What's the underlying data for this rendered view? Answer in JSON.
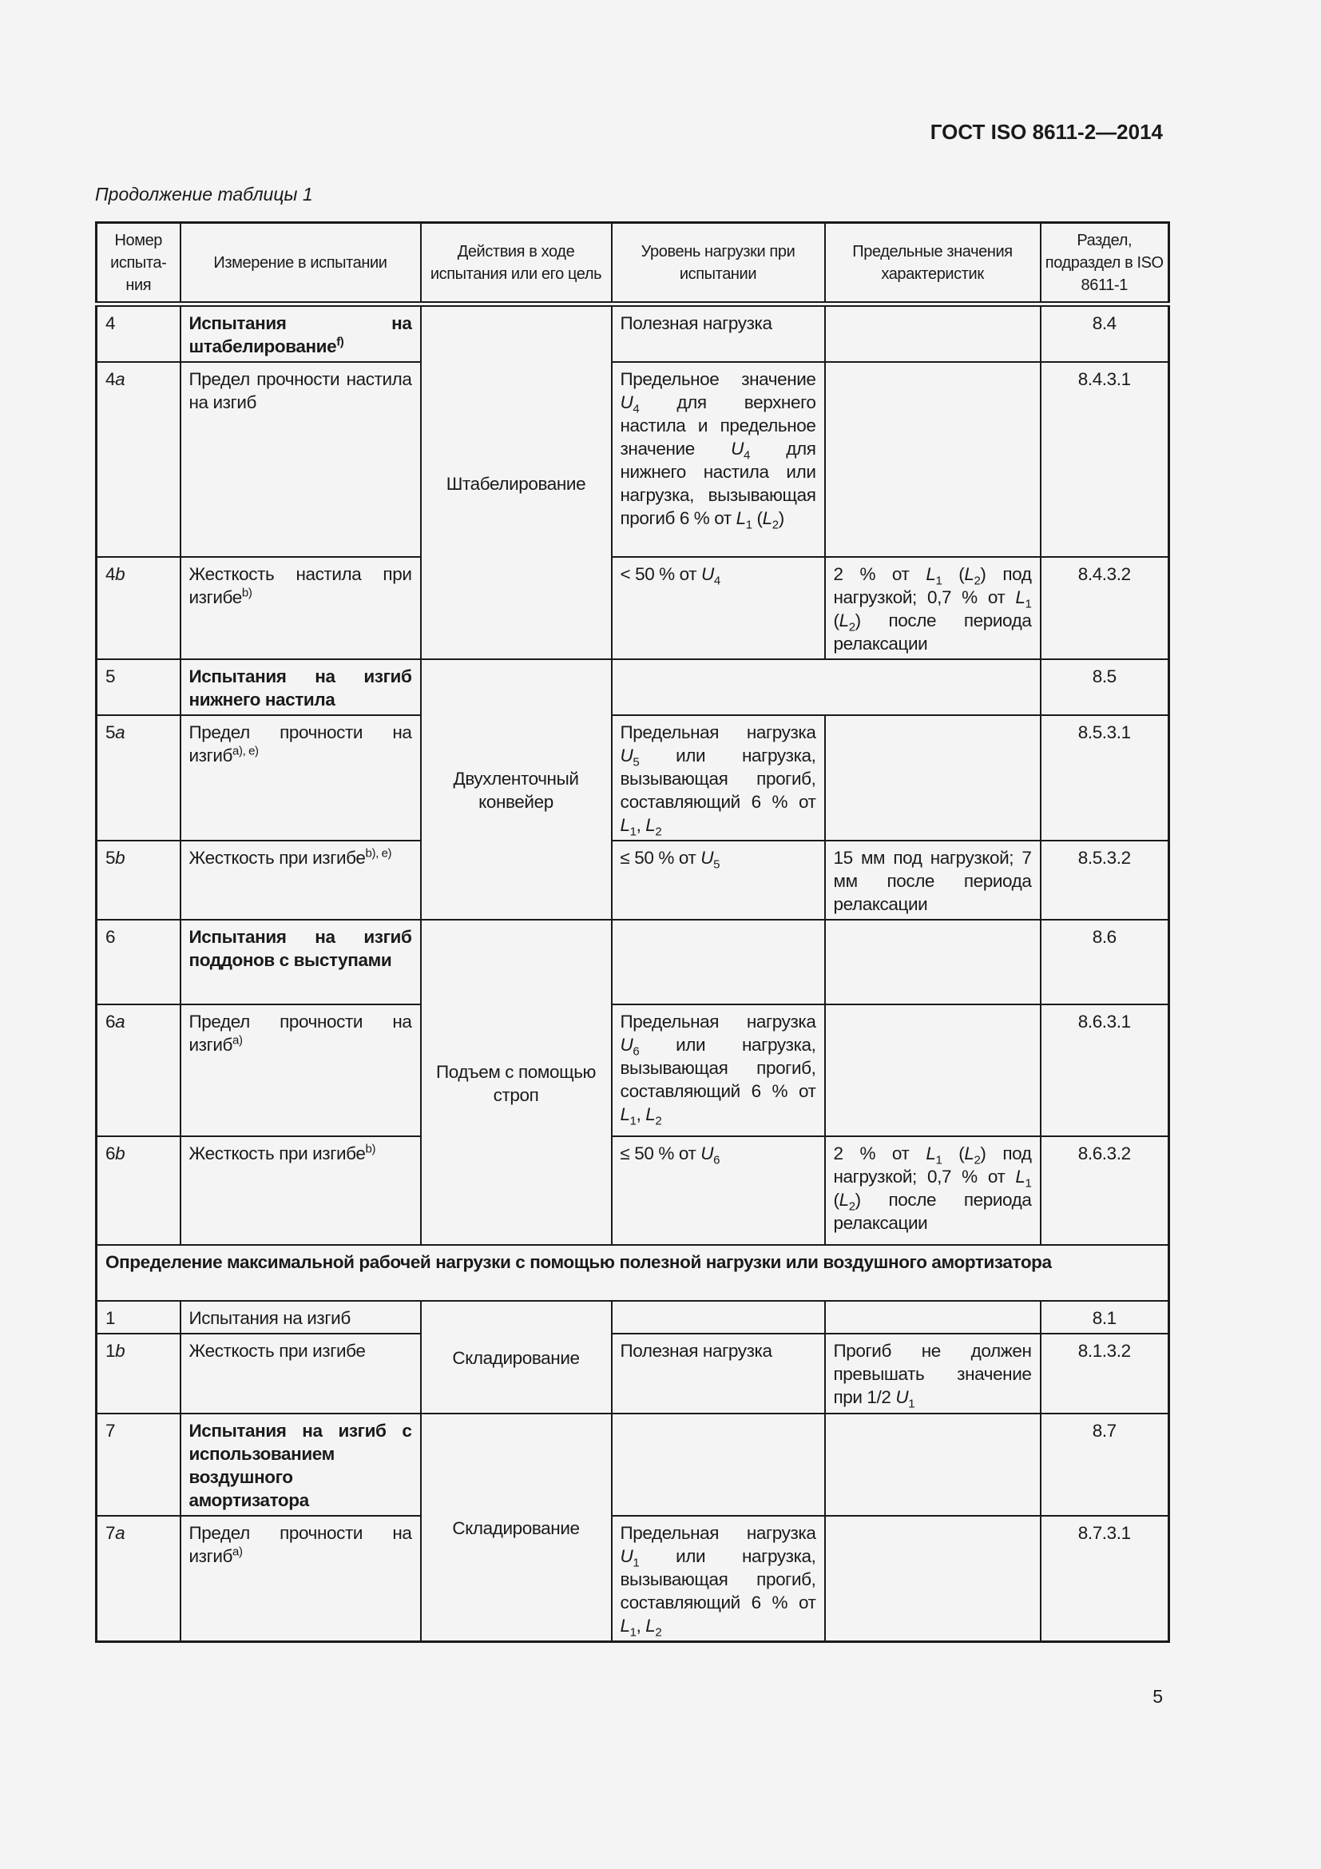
{
  "header": {
    "doc_code": "ГОСТ ISO 8611-2—2014",
    "caption": "Продолжение таблицы 1"
  },
  "footer": {
    "page_number": "5"
  },
  "table": {
    "columns": [
      "Номер испыта-ния",
      "Измерение в испытании",
      "Действия в ходе испытания или его цель",
      "Уровень нагрузки при испытании",
      "Предельные значения характеристик",
      "Раздел, подраздел в ISO 8611-1"
    ],
    "rows": [
      {
        "num": [
          [
            "4"
          ]
        ],
        "meas": [
          [
            "Испытания на штабелирование",
            "b"
          ],
          [
            "f)",
            "sup b"
          ]
        ],
        "act": {
          "text": "Штабелирование",
          "rowspan": 3
        },
        "load": [
          [
            "Полезная нагрузка"
          ]
        ],
        "limit": [],
        "sec": "8.4"
      },
      {
        "num": [
          [
            "4"
          ],
          [
            "a",
            "i"
          ]
        ],
        "meas": [
          [
            "Предел прочности настила на изгиб"
          ]
        ],
        "load": [
          [
            "Предельное значение "
          ],
          [
            "U",
            "i"
          ],
          [
            "4",
            "sub"
          ],
          [
            " для верхнего настила и предельное значение "
          ],
          [
            "U",
            "i"
          ],
          [
            "4",
            "sub"
          ],
          [
            " для нижнего настила или нагрузка, вызывающая прогиб 6 % от "
          ],
          [
            "L",
            "i"
          ],
          [
            "1",
            "sub"
          ],
          [
            " ("
          ],
          [
            "L",
            "i"
          ],
          [
            "2",
            "sub"
          ],
          [
            ")"
          ]
        ],
        "limit": [],
        "sec": "8.4.3.1"
      },
      {
        "num": [
          [
            "4"
          ],
          [
            "b",
            "i"
          ]
        ],
        "meas": [
          [
            "Жесткость настила при изгибе"
          ],
          [
            "b)",
            "sup"
          ]
        ],
        "load": [
          [
            "< 50 % от "
          ],
          [
            "U",
            "i"
          ],
          [
            "4",
            "sub"
          ]
        ],
        "limit": [
          [
            "2 % от "
          ],
          [
            "L",
            "i"
          ],
          [
            "1",
            "sub"
          ],
          [
            " ("
          ],
          [
            "L",
            "i"
          ],
          [
            "2",
            "sub"
          ],
          [
            ") под нагрузкой; 0,7 % от "
          ],
          [
            "L",
            "i"
          ],
          [
            "1",
            "sub"
          ],
          [
            " ("
          ],
          [
            "L",
            "i"
          ],
          [
            "2",
            "sub"
          ],
          [
            ") после периода релаксации"
          ]
        ],
        "sec": "8.4.3.2"
      },
      {
        "num": [
          [
            "5"
          ]
        ],
        "meas": [
          [
            "Испытания на изгиб нижнего настила",
            "b"
          ]
        ],
        "act": {
          "text": "Двухленточный конвейер",
          "rowspan": 3
        },
        "load": [],
        "merged": true,
        "sec": "8.5"
      },
      {
        "num": [
          [
            "5"
          ],
          [
            "a",
            "i"
          ]
        ],
        "meas": [
          [
            "Предел прочности на изгиб"
          ],
          [
            "a), e)",
            "sup"
          ]
        ],
        "load": [
          [
            "Предельная нагрузка "
          ],
          [
            "U",
            "i"
          ],
          [
            "5",
            "sub"
          ],
          [
            " или нагрузка, вызывающая прогиб, составляющий 6 % от "
          ],
          [
            "L",
            "i"
          ],
          [
            "1",
            "sub"
          ],
          [
            ", "
          ],
          [
            "L",
            "i"
          ],
          [
            "2",
            "sub"
          ]
        ],
        "limit": [],
        "sec": "8.5.3.1"
      },
      {
        "num": [
          [
            "5"
          ],
          [
            "b",
            "i"
          ]
        ],
        "meas": [
          [
            "Жесткость при изгибе"
          ],
          [
            "b), e)",
            "sup"
          ]
        ],
        "load": [
          [
            "≤ 50 % от "
          ],
          [
            "U",
            "i"
          ],
          [
            "5",
            "sub"
          ]
        ],
        "limit": [
          [
            "15 мм под нагрузкой; 7 мм после периода релаксации"
          ]
        ],
        "sec": "8.5.3.2"
      },
      {
        "num": [
          [
            "6"
          ]
        ],
        "meas": [
          [
            "Испытания на изгиб поддонов с выступами",
            "b"
          ]
        ],
        "act": {
          "text": "Подъем с помощью строп",
          "rowspan": 3
        },
        "load": [],
        "limit": [],
        "sec": "8.6"
      },
      {
        "num": [
          [
            "6"
          ],
          [
            "a",
            "i"
          ]
        ],
        "meas": [
          [
            "Предел прочности на изгиб"
          ],
          [
            "a)",
            "sup"
          ]
        ],
        "load": [
          [
            "Предельная нагрузка "
          ],
          [
            "U",
            "i"
          ],
          [
            "6",
            "sub"
          ],
          [
            " или нагрузка, вызывающая прогиб, составляющий 6 % от "
          ],
          [
            "L",
            "i"
          ],
          [
            "1",
            "sub"
          ],
          [
            ", "
          ],
          [
            "L",
            "i"
          ],
          [
            "2",
            "sub"
          ]
        ],
        "limit": [],
        "sec": "8.6.3.1"
      },
      {
        "num": [
          [
            "6"
          ],
          [
            "b",
            "i"
          ]
        ],
        "meas": [
          [
            "Жесткость при изгибе"
          ],
          [
            "b)",
            "sup"
          ]
        ],
        "load": [
          [
            "≤ 50 % от "
          ],
          [
            "U",
            "i"
          ],
          [
            "6",
            "sub"
          ]
        ],
        "limit": [
          [
            "2 % от "
          ],
          [
            "L",
            "i"
          ],
          [
            "1",
            "sub"
          ],
          [
            " ("
          ],
          [
            "L",
            "i"
          ],
          [
            "2",
            "sub"
          ],
          [
            ") под нагрузкой; 0,7 % от "
          ],
          [
            "L",
            "i"
          ],
          [
            "1",
            "sub"
          ],
          [
            " ("
          ],
          [
            "L",
            "i"
          ],
          [
            "2",
            "sub"
          ],
          [
            ") после периода релаксации"
          ]
        ],
        "sec": "8.6.3.2"
      },
      {
        "section": "Определение максимальной рабочей нагрузки с помощью полезной нагрузки или воздушного амортизатора"
      },
      {
        "num": [
          [
            "1"
          ]
        ],
        "meas": [
          [
            "Испытания на изгиб"
          ]
        ],
        "act": {
          "text": "Складирование",
          "rowspan": 2
        },
        "load": [],
        "limit": [],
        "sec": "8.1"
      },
      {
        "num": [
          [
            "1"
          ],
          [
            "b",
            "i"
          ]
        ],
        "meas": [
          [
            "Жесткость при изгибе"
          ]
        ],
        "load": [
          [
            "Полезная нагрузка"
          ]
        ],
        "limit": [
          [
            "Прогиб не должен превышать значение при 1/2 "
          ],
          [
            "U",
            "i"
          ],
          [
            "1",
            "sub"
          ]
        ],
        "sec": "8.1.3.2"
      },
      {
        "num": [
          [
            "7"
          ]
        ],
        "meas": [
          [
            "Испытания на изгиб с использованием воздушного амортизатора",
            "b"
          ]
        ],
        "act": {
          "text": "Складирование",
          "rowspan": 2
        },
        "load": [],
        "limit": [],
        "sec": "8.7"
      },
      {
        "num": [
          [
            "7"
          ],
          [
            "a",
            "i"
          ]
        ],
        "meas": [
          [
            "Предел прочности на изгиб"
          ],
          [
            "a)",
            "sup"
          ]
        ],
        "load": [
          [
            "Предельная нагрузка "
          ],
          [
            "U",
            "i"
          ],
          [
            "1",
            "sub"
          ],
          [
            " или нагрузка, вызывающая прогиб, составляющий 6 % от "
          ],
          [
            "L",
            "i"
          ],
          [
            "1",
            "sub"
          ],
          [
            ", "
          ],
          [
            "L",
            "i"
          ],
          [
            "2",
            "sub"
          ]
        ],
        "limit": [],
        "sec": "8.7.3.1"
      }
    ]
  }
}
